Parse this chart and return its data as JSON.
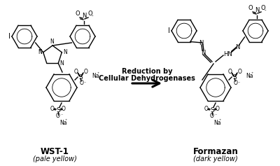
{
  "background_color": "#ffffff",
  "arrow_text_line1": "Reduction by",
  "arrow_text_line2": "Cellular Dehydrogenases",
  "label_wst1": "WST-1",
  "label_wst1_sub": "(pale yellow)",
  "label_formazan": "Formazan",
  "label_formazan_sub": "(dark yellow)",
  "fig_width": 4.0,
  "fig_height": 2.37,
  "dpi": 100
}
